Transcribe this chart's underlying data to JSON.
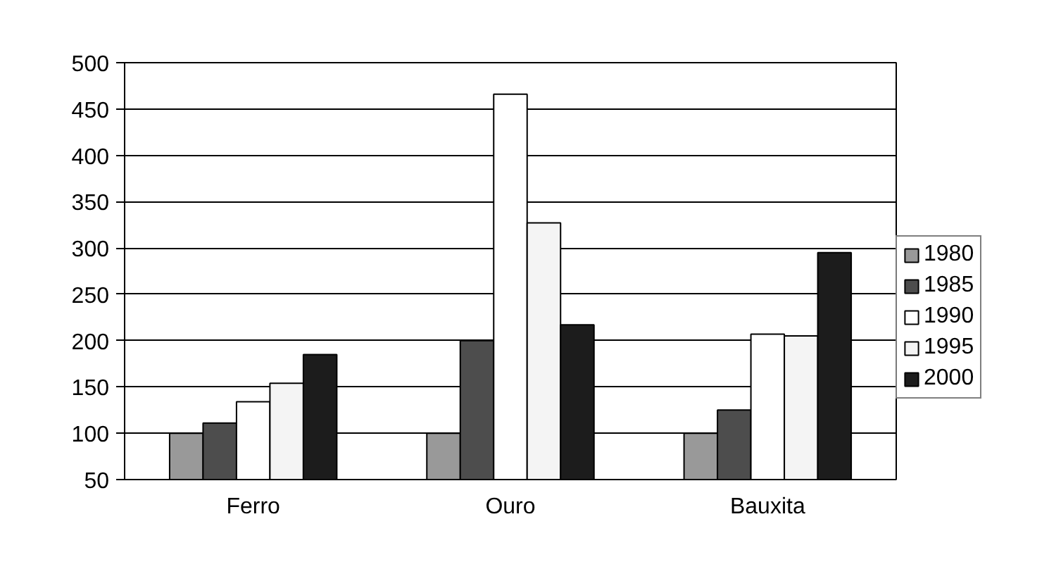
{
  "chart_data": {
    "type": "bar",
    "categories": [
      "Ferro",
      "Ouro",
      "Bauxita"
    ],
    "series": [
      {
        "name": "1980",
        "color": "#999999",
        "values": [
          100,
          100,
          100
        ]
      },
      {
        "name": "1985",
        "color": "#4d4d4d",
        "values": [
          111,
          200,
          125
        ]
      },
      {
        "name": "1990",
        "color": "#ffffff",
        "values": [
          134,
          466,
          207
        ]
      },
      {
        "name": "1995",
        "color": "#f4f4f4",
        "values": [
          154,
          327,
          205
        ]
      },
      {
        "name": "2000",
        "color": "#1c1c1c",
        "values": [
          185,
          217,
          295
        ]
      }
    ],
    "ylim": [
      50,
      500
    ],
    "yticks": [
      50,
      100,
      150,
      200,
      250,
      300,
      350,
      400,
      450,
      500
    ],
    "grid": "y",
    "legend": "right"
  }
}
